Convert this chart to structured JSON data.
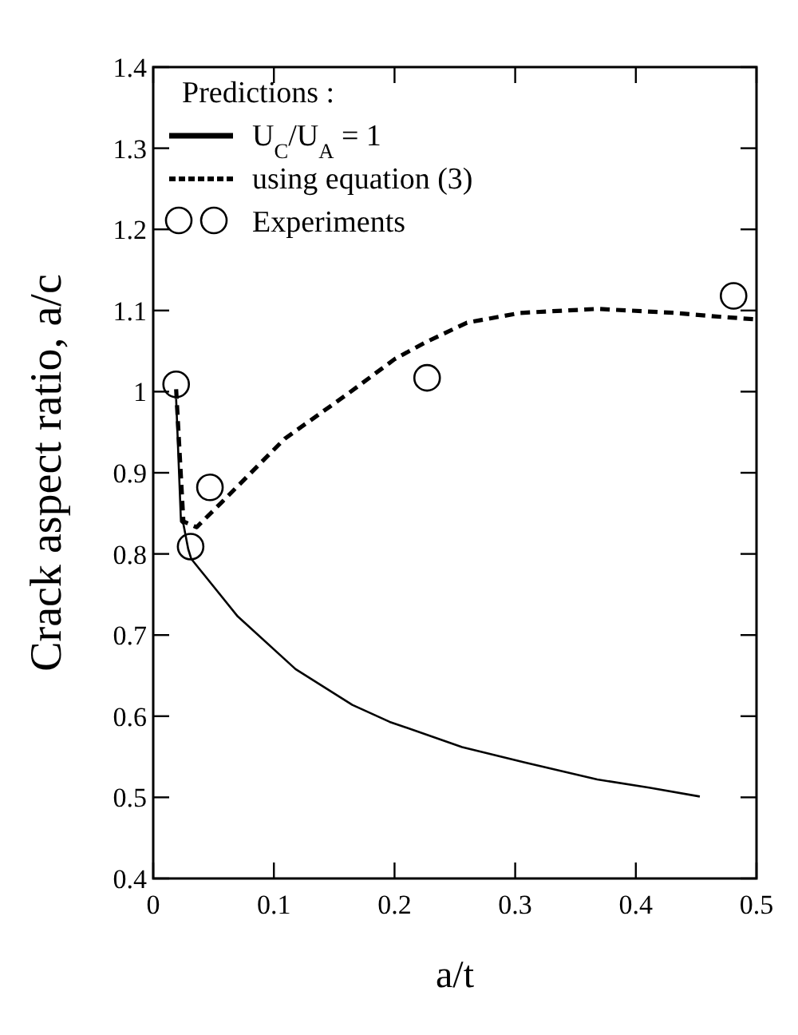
{
  "chart_data": {
    "type": "line",
    "xlabel": "a/t",
    "ylabel": "Crack aspect ratio, a/c",
    "legend_title": "Predictions :",
    "legend": "top left",
    "grid": false,
    "xlim": [
      0,
      0.5
    ],
    "xticks": [
      0,
      0.1,
      0.2,
      0.3,
      0.4,
      0.5
    ],
    "ylim": [
      0.4,
      1.4
    ],
    "yticks": [
      0.4,
      0.5,
      0.6,
      0.7,
      0.8,
      0.9,
      1,
      1.1,
      1.2,
      1.3,
      1.4
    ],
    "series": [
      {
        "name": "U$_{C}$/U$_{A}$ = 1",
        "line_style": "solid",
        "color": "#000000",
        "x": [
          0.019,
          0.023,
          0.025,
          0.029,
          0.0315,
          0.07,
          0.118,
          0.165,
          0.196,
          0.256,
          0.308,
          0.368,
          0.411,
          0.453
        ],
        "values": [
          0.991,
          0.84,
          0.837,
          0.806,
          0.794,
          0.723,
          0.658,
          0.614,
          0.593,
          0.562,
          0.543,
          0.522,
          0.512,
          0.501
        ]
      },
      {
        "name": "using equation (3)",
        "line_style": "dashed",
        "color": "#000000",
        "x": [
          0.019,
          0.025,
          0.036,
          0.057,
          0.109,
          0.161,
          0.2,
          0.226,
          0.26,
          0.304,
          0.368,
          0.433,
          0.463,
          0.5
        ],
        "values": [
          1.003,
          0.84,
          0.833,
          0.864,
          0.942,
          0.997,
          1.04,
          1.061,
          1.085,
          1.097,
          1.102,
          1.097,
          1.093,
          1.089
        ]
      },
      {
        "name": "Experiments",
        "type": "scatter",
        "marker": "circle",
        "color": "#000000",
        "x": [
          0.019,
          0.031,
          0.047,
          0.227,
          0.481
        ],
        "values": [
          1.009,
          0.809,
          0.882,
          1.017,
          1.118
        ]
      }
    ]
  }
}
